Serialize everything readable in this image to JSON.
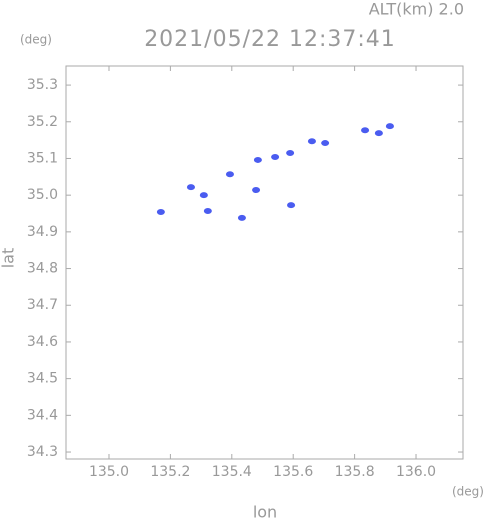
{
  "chart_data": {
    "type": "scatter",
    "title": "2021/05/22 12:37:41",
    "annotation": "ALT(km)  2.0",
    "y_unit": "(deg)",
    "x_unit": "(deg)",
    "xlabel": "lon",
    "ylabel": "lat",
    "color": "#4a5cf0",
    "grid": false,
    "xlim": [
      134.86,
      136.153
    ],
    "ylim": [
      34.281,
      35.352
    ],
    "xticks": [
      {
        "value": 135.0,
        "label": "135.0"
      },
      {
        "value": 135.2,
        "label": "135.2"
      },
      {
        "value": 135.4,
        "label": "135.4"
      },
      {
        "value": 135.6,
        "label": "135.6"
      },
      {
        "value": 135.8,
        "label": "135.8"
      },
      {
        "value": 136.0,
        "label": "136.0"
      }
    ],
    "yticks": [
      34.3,
      34.4,
      34.5,
      34.6,
      34.7,
      34.8,
      34.9,
      {
        "value": 35.0,
        "label": "35.0"
      },
      35.1,
      35.2,
      35.3
    ],
    "x": [
      135.169,
      135.267,
      135.309,
      135.322,
      135.394,
      135.433,
      135.479,
      135.485,
      135.541,
      135.59,
      135.593,
      135.661,
      135.704,
      135.834,
      135.879,
      135.915
    ],
    "y": [
      34.954,
      35.022,
      35.0,
      34.957,
      35.057,
      34.938,
      35.014,
      35.096,
      35.104,
      35.115,
      34.973,
      35.147,
      35.142,
      35.177,
      35.169,
      35.188
    ]
  }
}
